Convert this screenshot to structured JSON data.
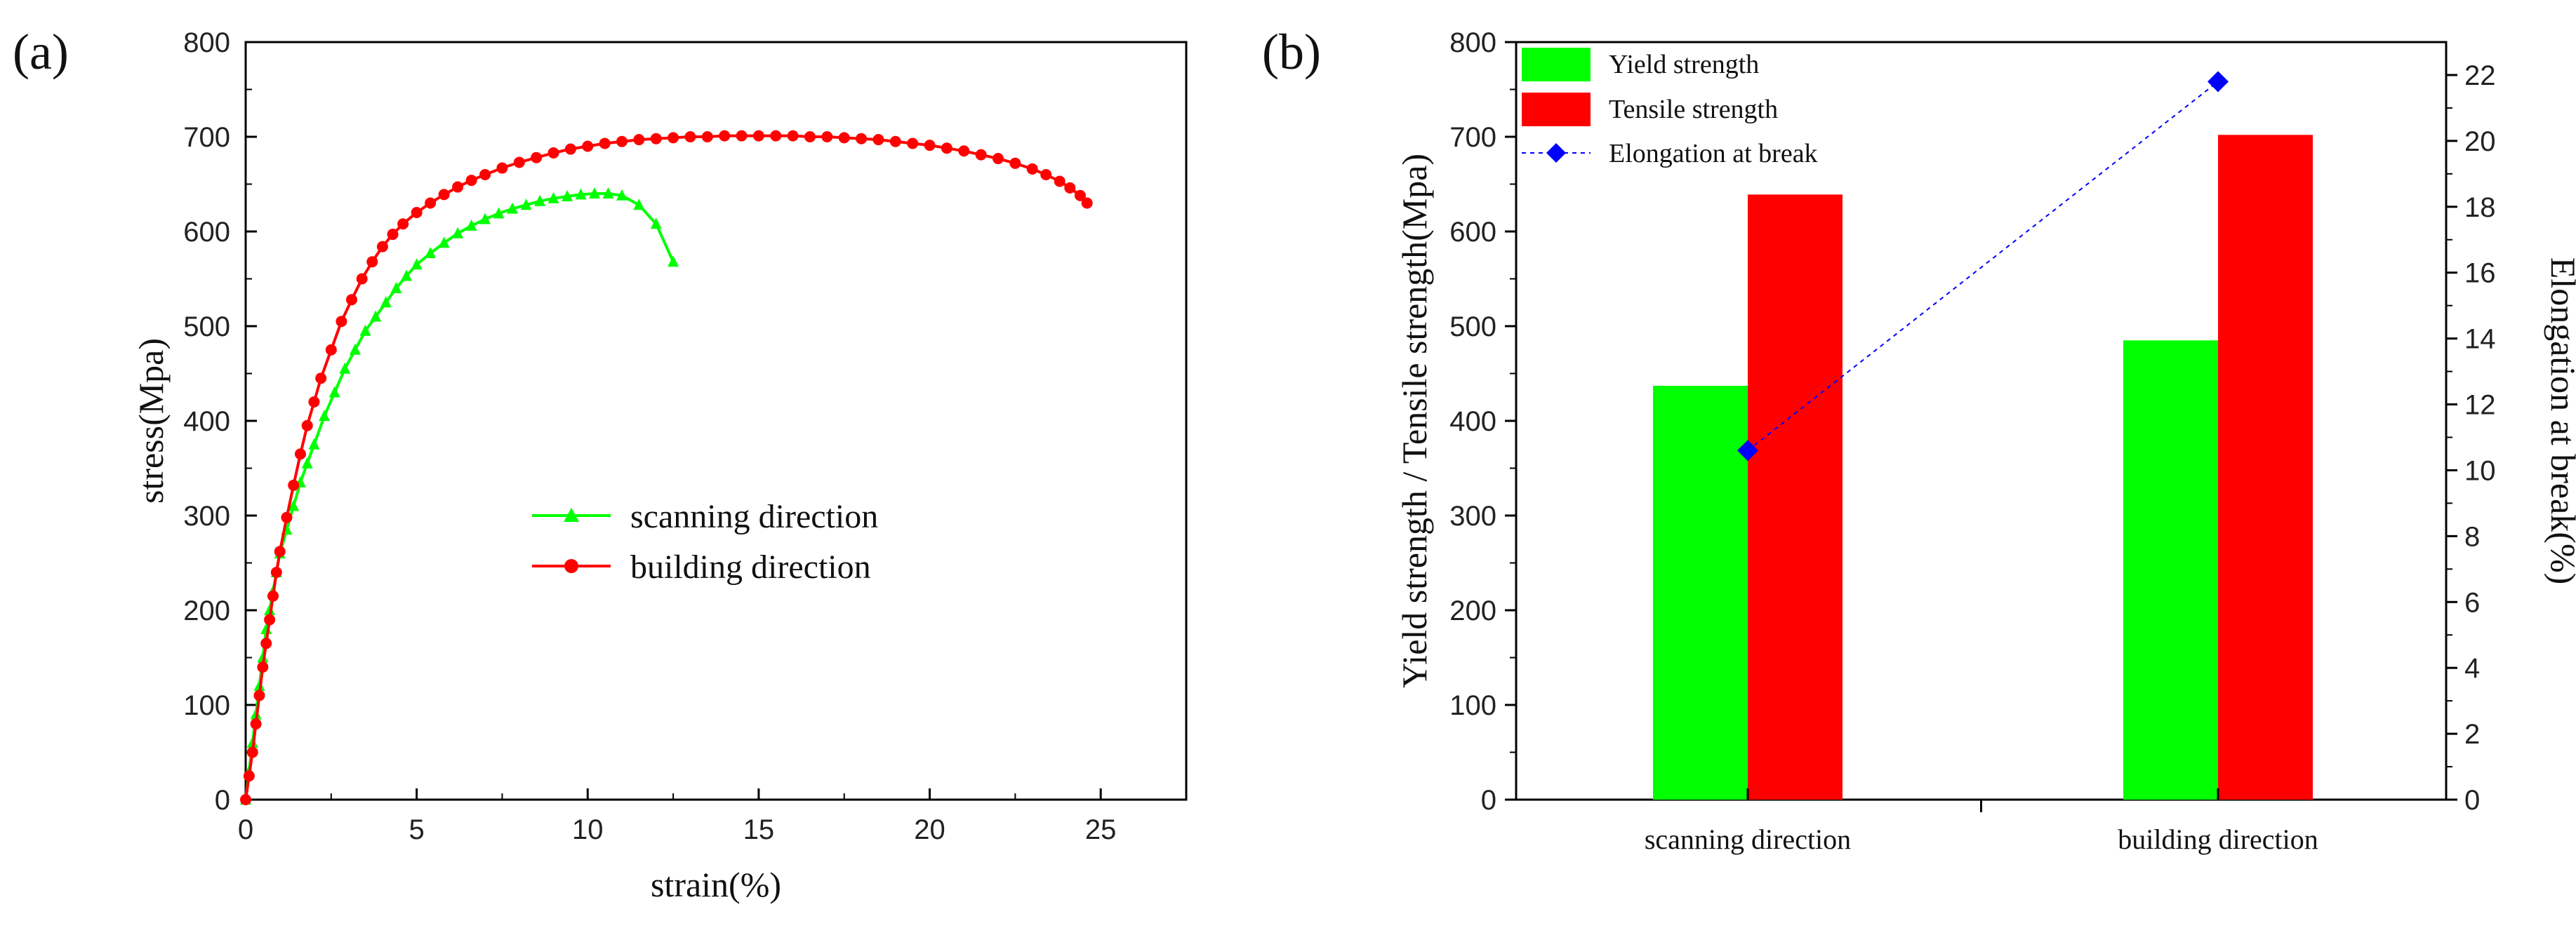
{
  "chart_data": [
    {
      "type": "line",
      "panel_label": "(a)",
      "xlabel": "strain(%)",
      "ylabel": "stress(Mpa)",
      "xlim": [
        0,
        27.5
      ],
      "ylim": [
        0,
        800
      ],
      "xticks": [
        0,
        5,
        10,
        15,
        20,
        25
      ],
      "yticks": [
        0,
        100,
        200,
        300,
        400,
        500,
        600,
        700,
        800
      ],
      "legend_position": "center",
      "series": [
        {
          "name": "scanning direction",
          "color": "#00ff00",
          "marker": "triangle",
          "x": [
            0,
            0.1,
            0.2,
            0.3,
            0.4,
            0.5,
            0.6,
            0.7,
            0.8,
            0.9,
            1.0,
            1.2,
            1.4,
            1.6,
            1.8,
            2.0,
            2.3,
            2.6,
            2.9,
            3.2,
            3.5,
            3.8,
            4.1,
            4.4,
            4.7,
            5.0,
            5.4,
            5.8,
            6.2,
            6.6,
            7.0,
            7.4,
            7.8,
            8.2,
            8.6,
            9.0,
            9.4,
            9.8,
            10.2,
            10.6,
            11.0,
            11.5,
            12.0,
            12.5
          ],
          "y": [
            0,
            30,
            60,
            90,
            120,
            150,
            180,
            200,
            220,
            240,
            260,
            285,
            310,
            335,
            355,
            375,
            405,
            430,
            455,
            475,
            495,
            510,
            525,
            540,
            553,
            565,
            577,
            588,
            598,
            606,
            613,
            619,
            624,
            628,
            632,
            635,
            637,
            639,
            640,
            640,
            638,
            628,
            608,
            568
          ]
        },
        {
          "name": "building direction",
          "color": "#ff0000",
          "marker": "circle",
          "x": [
            0,
            0.1,
            0.2,
            0.3,
            0.4,
            0.5,
            0.6,
            0.7,
            0.8,
            0.9,
            1.0,
            1.2,
            1.4,
            1.6,
            1.8,
            2.0,
            2.2,
            2.5,
            2.8,
            3.1,
            3.4,
            3.7,
            4.0,
            4.3,
            4.6,
            5.0,
            5.4,
            5.8,
            6.2,
            6.6,
            7.0,
            7.5,
            8.0,
            8.5,
            9.0,
            9.5,
            10.0,
            10.5,
            11.0,
            11.5,
            12.0,
            12.5,
            13.0,
            13.5,
            14.0,
            14.5,
            15.0,
            15.5,
            16.0,
            16.5,
            17.0,
            17.5,
            18.0,
            18.5,
            19.0,
            19.5,
            20.0,
            20.5,
            21.0,
            21.5,
            22.0,
            22.5,
            23.0,
            23.4,
            23.8,
            24.1,
            24.4,
            24.6
          ],
          "y": [
            0,
            25,
            50,
            80,
            110,
            140,
            165,
            190,
            215,
            240,
            262,
            298,
            332,
            365,
            395,
            420,
            445,
            475,
            505,
            528,
            550,
            568,
            584,
            597,
            608,
            620,
            630,
            639,
            647,
            654,
            660,
            667,
            673,
            678,
            683,
            687,
            690,
            693,
            695,
            697,
            698,
            699,
            700,
            700,
            701,
            701,
            701,
            701,
            701,
            700,
            700,
            699,
            698,
            697,
            695,
            693,
            691,
            688,
            685,
            681,
            677,
            672,
            666,
            660,
            653,
            646,
            638,
            630
          ]
        }
      ]
    },
    {
      "type": "bar",
      "panel_label": "(b)",
      "categories": [
        "scanning direction",
        "building direction"
      ],
      "ylabel": "Yield strength / Tensile strength(Mpa)",
      "ylabel_right": "Elongation at break(%)",
      "ylim": [
        0,
        800
      ],
      "ylim_right": [
        0,
        23
      ],
      "yticks": [
        0,
        100,
        200,
        300,
        400,
        500,
        600,
        700,
        800
      ],
      "yticks_right": [
        0,
        2,
        4,
        6,
        8,
        10,
        12,
        14,
        16,
        18,
        20,
        22
      ],
      "legend_position": "top-left",
      "series": [
        {
          "name": "Yield strength",
          "color": "#00ff00",
          "values": [
            437,
            485
          ],
          "axis": "left"
        },
        {
          "name": "Tensile strength",
          "color": "#ff0000",
          "values": [
            639,
            702
          ],
          "axis": "left"
        },
        {
          "name": "Elongation at break",
          "color": "#0000ff",
          "type": "line",
          "marker": "diamond",
          "values": [
            10.6,
            21.8
          ],
          "axis": "right"
        }
      ]
    }
  ]
}
